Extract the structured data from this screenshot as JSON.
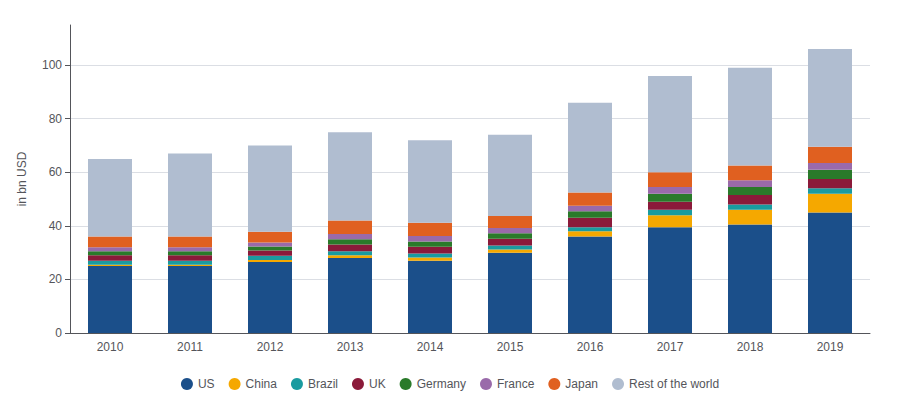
{
  "chart_data": {
    "type": "bar",
    "stacked": true,
    "ylabel": "in bn USD",
    "categories": [
      "2010",
      "2011",
      "2012",
      "2013",
      "2014",
      "2015",
      "2016",
      "2017",
      "2018",
      "2019"
    ],
    "series": [
      {
        "name": "US",
        "color": "#1b4f8a",
        "values": [
          25.0,
          25.0,
          26.5,
          28.0,
          27.0,
          30.0,
          36.0,
          39.5,
          40.5,
          45.0
        ]
      },
      {
        "name": "China",
        "color": "#f5a800",
        "values": [
          0.5,
          0.5,
          0.8,
          1.0,
          1.2,
          1.2,
          2.0,
          4.5,
          5.5,
          7.0
        ]
      },
      {
        "name": "Brazil",
        "color": "#1a9ba0",
        "values": [
          1.5,
          1.5,
          1.5,
          1.5,
          1.5,
          1.5,
          1.5,
          2.0,
          2.0,
          2.0
        ]
      },
      {
        "name": "UK",
        "color": "#8b1a3a",
        "values": [
          2.0,
          2.0,
          2.0,
          2.5,
          2.5,
          2.5,
          3.5,
          3.0,
          3.5,
          3.5
        ]
      },
      {
        "name": "Germany",
        "color": "#2a7a2a",
        "values": [
          1.5,
          1.5,
          1.5,
          2.0,
          2.0,
          2.0,
          2.5,
          3.0,
          3.0,
          3.5
        ]
      },
      {
        "name": "France",
        "color": "#9a6aaa",
        "values": [
          1.5,
          1.5,
          1.5,
          2.0,
          2.0,
          2.0,
          2.0,
          2.5,
          2.5,
          2.5
        ]
      },
      {
        "name": "Japan",
        "color": "#e06020",
        "values": [
          4.0,
          4.0,
          4.0,
          5.0,
          5.0,
          4.5,
          5.0,
          5.5,
          5.5,
          6.0
        ]
      },
      {
        "name": "Rest of the world",
        "color": "#b0bdd0",
        "values": [
          29.0,
          31.0,
          32.2,
          33.0,
          30.8,
          30.3,
          33.5,
          36.0,
          36.5,
          36.5
        ]
      }
    ],
    "ylim": [
      0,
      115
    ],
    "yticks": [
      0,
      20,
      40,
      60,
      80,
      100
    ],
    "grid": true,
    "legend": "bottom",
    "marker": "circle"
  }
}
